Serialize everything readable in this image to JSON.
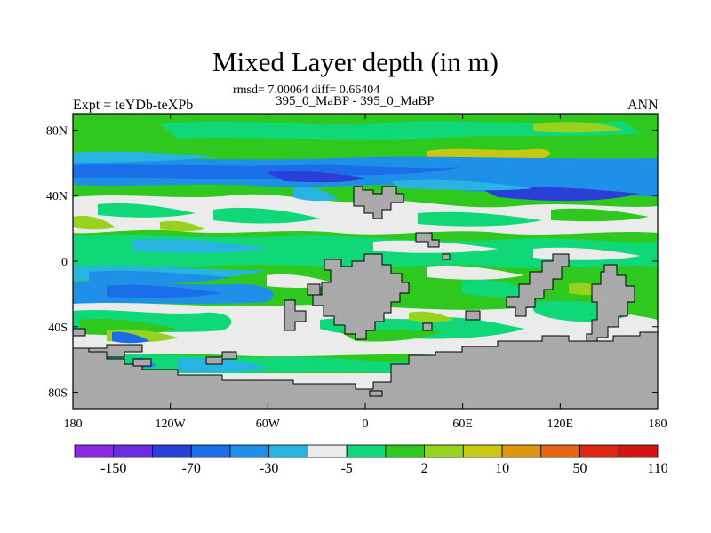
{
  "title": "Mixed Layer depth (in m)",
  "stats": "rmsd= 7.00064 diff= 0.66404",
  "case_label": "395_0_MaBP - 395_0_MaBP",
  "left_label": "Expt = teYDb-teXPb",
  "right_label": "ANN",
  "lat_ticks": [
    "80N",
    "40N",
    "0",
    "40S",
    "80S"
  ],
  "lon_ticks": [
    "180",
    "120W",
    "60W",
    "0",
    "60E",
    "120E",
    "180"
  ],
  "colorbar": {
    "labels": [
      "-150",
      "-70",
      "-30",
      "-5",
      "2",
      "10",
      "50",
      "110"
    ],
    "colors": [
      "#8a2be2",
      "#6a2de0",
      "#2a3fd8",
      "#1a6ee8",
      "#1e90e8",
      "#28b4e0",
      "#ebebeb",
      "#10d878",
      "#2ec81e",
      "#96d21e",
      "#c8c814",
      "#dc9612",
      "#e66414",
      "#dc2814",
      "#d21414"
    ]
  },
  "legend_colors": {
    "land": "#a9a9a9",
    "neutral": "#ebebeb",
    "green": "#10d878",
    "lime": "#2ec81e",
    "yellow_green": "#96d21e",
    "light_blue": "#28b4e0",
    "mid_blue": "#1e90e8",
    "deep_blue": "#1a6ee8",
    "dark_blue": "#2a3fd8",
    "purple": "#6a2de0"
  }
}
